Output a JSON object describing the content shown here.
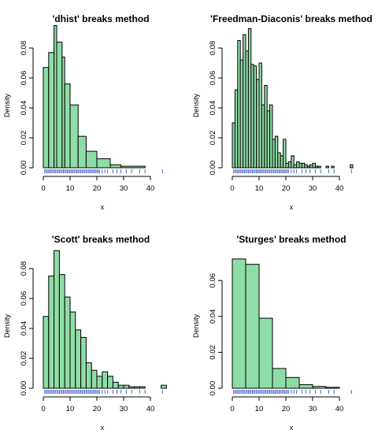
{
  "colors": {
    "bar_fill": "#8fdda6",
    "bar_stroke": "#000000",
    "rug": "#4466cc"
  },
  "chart_data": [
    {
      "type": "bar",
      "title": "'dhist' breaks method",
      "xlabel": "x",
      "ylabel": "Density",
      "xlim": [
        0,
        45
      ],
      "ylim": [
        0,
        0.09
      ],
      "xticks": [
        0,
        10,
        20,
        30,
        40
      ],
      "yticks": [
        0,
        0.02,
        0.04,
        0.06,
        0.08
      ],
      "breaks": [
        0,
        2,
        4,
        5,
        7,
        8,
        10,
        13,
        16,
        20,
        25,
        29,
        38
      ],
      "values": [
        0.067,
        0.077,
        0.095,
        0.084,
        0.074,
        0.056,
        0.042,
        0.021,
        0.011,
        0.006,
        0.002,
        0.001
      ],
      "rug": [
        0.5,
        1,
        1.5,
        2,
        2.5,
        3,
        3.5,
        4,
        4.5,
        5,
        5.5,
        6,
        6.5,
        7,
        7.5,
        8,
        8.5,
        9,
        9.5,
        10,
        10.5,
        11,
        11.5,
        12,
        12.5,
        13,
        13.5,
        14,
        14.5,
        15,
        15.5,
        16,
        16.5,
        17,
        17.5,
        18,
        18.5,
        19,
        19.5,
        20,
        20.5,
        21,
        22,
        23,
        24,
        26,
        27.5,
        29,
        31,
        33,
        36,
        38,
        44.5
      ]
    },
    {
      "type": "bar",
      "title": "'Freedman-Diaconis' breaks method",
      "xlabel": "x",
      "ylabel": "Density",
      "xlim": [
        0,
        45
      ],
      "ylim": [
        0,
        0.09
      ],
      "xticks": [
        0,
        10,
        20,
        30,
        40
      ],
      "yticks": [
        0,
        0.02,
        0.04,
        0.06,
        0.08
      ],
      "breaks": [
        0,
        1,
        2,
        3,
        4,
        5,
        6,
        7,
        8,
        9,
        10,
        11,
        12,
        13,
        14,
        15,
        16,
        17,
        18,
        19,
        20,
        21,
        22,
        23,
        24,
        25,
        26,
        27,
        28,
        29,
        30,
        31,
        32,
        33,
        34,
        35,
        36,
        37,
        38,
        39,
        40,
        41,
        42,
        43,
        44,
        45
      ],
      "values": [
        0.03,
        0.052,
        0.085,
        0.072,
        0.089,
        0.078,
        0.093,
        0.069,
        0.068,
        0.059,
        0.07,
        0.042,
        0.055,
        0.038,
        0.042,
        0.019,
        0.021,
        0.01,
        0.008,
        0.019,
        0.003,
        0.004,
        0.008,
        0.002,
        0.004,
        0.003,
        0.003,
        0.002,
        0.001,
        0.002,
        0.003,
        0.001,
        0.001,
        0.0,
        0.0,
        0.001,
        0.0,
        0.001,
        0.0,
        0.0,
        0.0,
        0.0,
        0.0,
        0.0,
        0.002
      ],
      "rug": [
        0.5,
        1,
        1.5,
        2,
        2.5,
        3,
        3.5,
        4,
        4.5,
        5,
        5.5,
        6,
        6.5,
        7,
        7.5,
        8,
        8.5,
        9,
        9.5,
        10,
        10.5,
        11,
        11.5,
        12,
        12.5,
        13,
        13.5,
        14,
        14.5,
        15,
        15.5,
        16,
        16.5,
        17,
        17.5,
        18,
        18.5,
        19,
        19.5,
        20,
        20.5,
        21,
        22,
        23,
        24,
        26,
        27.5,
        29,
        31,
        33,
        36,
        38,
        44.5
      ]
    },
    {
      "type": "bar",
      "title": "'Scott' breaks method",
      "xlabel": "x",
      "ylabel": "Density",
      "xlim": [
        0,
        45
      ],
      "ylim": [
        0,
        0.09
      ],
      "xticks": [
        0,
        10,
        20,
        30,
        40
      ],
      "yticks": [
        0,
        0.02,
        0.04,
        0.06,
        0.08
      ],
      "breaks": [
        0,
        2,
        4,
        6,
        8,
        10,
        12,
        14,
        16,
        18,
        20,
        22,
        24,
        26,
        28,
        30,
        32,
        34,
        36,
        38,
        40,
        42,
        44,
        46
      ],
      "values": [
        0.048,
        0.075,
        0.092,
        0.076,
        0.061,
        0.051,
        0.039,
        0.034,
        0.017,
        0.012,
        0.008,
        0.011,
        0.008,
        0.004,
        0.002,
        0.002,
        0.001,
        0.001,
        0.001,
        0.0,
        0.0,
        0.0,
        0.002
      ],
      "rug": [
        0.5,
        1,
        1.5,
        2,
        2.5,
        3,
        3.5,
        4,
        4.5,
        5,
        5.5,
        6,
        6.5,
        7,
        7.5,
        8,
        8.5,
        9,
        9.5,
        10,
        10.5,
        11,
        11.5,
        12,
        12.5,
        13,
        13.5,
        14,
        14.5,
        15,
        15.5,
        16,
        16.5,
        17,
        17.5,
        18,
        18.5,
        19,
        19.5,
        20,
        20.5,
        21,
        22,
        23,
        24,
        26,
        27.5,
        29,
        31,
        33,
        36,
        38,
        44.5
      ]
    },
    {
      "type": "bar",
      "title": "'Sturges' breaks method",
      "xlabel": "x",
      "ylabel": "Density",
      "xlim": [
        0,
        45
      ],
      "ylim": [
        0,
        0.075
      ],
      "xticks": [
        0,
        10,
        20,
        30,
        40
      ],
      "yticks": [
        0,
        0.02,
        0.04,
        0.06
      ],
      "breaks": [
        0,
        5,
        10,
        15,
        20,
        25,
        30,
        35,
        40
      ],
      "values": [
        0.072,
        0.069,
        0.039,
        0.011,
        0.006,
        0.002,
        0.001,
        0.0005
      ],
      "rug": [
        0.5,
        1,
        1.5,
        2,
        2.5,
        3,
        3.5,
        4,
        4.5,
        5,
        5.5,
        6,
        6.5,
        7,
        7.5,
        8,
        8.5,
        9,
        9.5,
        10,
        10.5,
        11,
        11.5,
        12,
        12.5,
        13,
        13.5,
        14,
        14.5,
        15,
        15.5,
        16,
        16.5,
        17,
        17.5,
        18,
        18.5,
        19,
        19.5,
        20,
        20.5,
        21,
        22,
        23,
        24,
        26,
        27.5,
        29,
        31,
        33,
        36,
        38,
        44.5
      ]
    }
  ]
}
